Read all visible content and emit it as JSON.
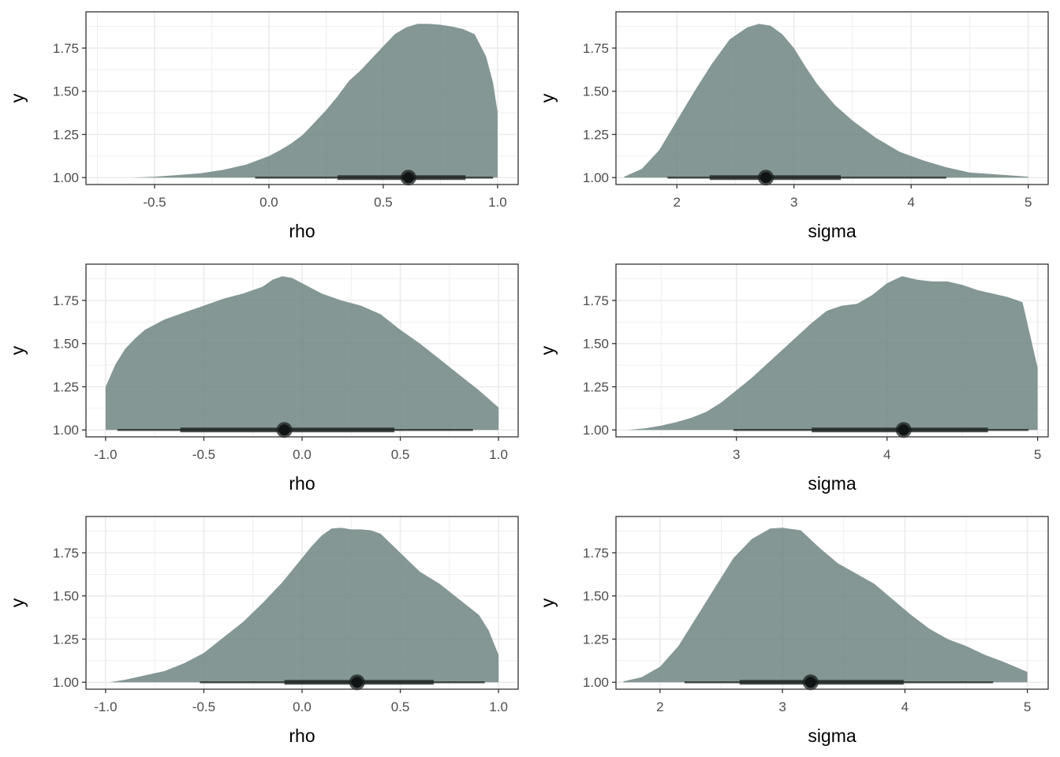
{
  "chart_data": [
    {
      "type": "area",
      "xlabel": "rho",
      "ylabel": "y",
      "xlim": [
        -0.8,
        1.09
      ],
      "ylim": [
        0.96,
        1.96
      ],
      "x_ticks": [
        -0.5,
        0.0,
        0.5,
        1.0
      ],
      "x_tick_labels": [
        "-0.5",
        "0.0",
        "0.5",
        "1.0"
      ],
      "y_ticks": [
        1.0,
        1.25,
        1.5,
        1.75
      ],
      "y_tick_labels": [
        "1.00",
        "1.25",
        "1.50",
        "1.75"
      ],
      "grid": true,
      "fill_color": "#6f8583",
      "density": {
        "x": [
          -0.72,
          -0.6,
          -0.5,
          -0.4,
          -0.3,
          -0.2,
          -0.1,
          0.0,
          0.05,
          0.1,
          0.15,
          0.2,
          0.25,
          0.3,
          0.35,
          0.4,
          0.45,
          0.5,
          0.55,
          0.6,
          0.65,
          0.7,
          0.75,
          0.8,
          0.85,
          0.9,
          0.95,
          0.98,
          1.0
        ],
        "y": [
          1.0,
          1.0,
          1.005,
          1.015,
          1.025,
          1.045,
          1.075,
          1.125,
          1.16,
          1.2,
          1.25,
          1.32,
          1.39,
          1.47,
          1.56,
          1.62,
          1.69,
          1.76,
          1.83,
          1.87,
          1.89,
          1.89,
          1.885,
          1.875,
          1.86,
          1.83,
          1.7,
          1.55,
          1.38
        ]
      },
      "point_estimate": 0.61,
      "interval_inner": [
        0.3,
        0.86
      ],
      "interval_outer": [
        -0.06,
        0.98
      ]
    },
    {
      "type": "area",
      "xlabel": "sigma",
      "ylabel": "y",
      "xlim": [
        1.48,
        5.17
      ],
      "ylim": [
        0.96,
        1.96
      ],
      "x_ticks": [
        2,
        3,
        4,
        5
      ],
      "x_tick_labels": [
        "2",
        "3",
        "4",
        "5"
      ],
      "y_ticks": [
        1.0,
        1.25,
        1.5,
        1.75
      ],
      "y_tick_labels": [
        "1.00",
        "1.25",
        "1.50",
        "1.75"
      ],
      "grid": true,
      "fill_color": "#6f8583",
      "density": {
        "x": [
          1.55,
          1.7,
          1.85,
          2.0,
          2.15,
          2.3,
          2.45,
          2.6,
          2.7,
          2.8,
          2.9,
          3.0,
          3.1,
          3.2,
          3.35,
          3.5,
          3.7,
          3.9,
          4.1,
          4.3,
          4.5,
          4.7,
          5.0
        ],
        "y": [
          1.005,
          1.05,
          1.16,
          1.33,
          1.5,
          1.66,
          1.8,
          1.87,
          1.89,
          1.88,
          1.83,
          1.75,
          1.64,
          1.54,
          1.42,
          1.33,
          1.23,
          1.15,
          1.1,
          1.06,
          1.03,
          1.02,
          1.005
        ]
      },
      "point_estimate": 2.76,
      "interval_inner": [
        2.28,
        3.4
      ],
      "interval_outer": [
        1.92,
        4.3
      ]
    },
    {
      "type": "area",
      "xlabel": "rho",
      "ylabel": "y",
      "xlim": [
        -1.1,
        1.1
      ],
      "ylim": [
        0.96,
        1.96
      ],
      "x_ticks": [
        -1.0,
        -0.5,
        0.0,
        0.5,
        1.0
      ],
      "x_tick_labels": [
        "-1.0",
        "-0.5",
        "0.0",
        "0.5",
        "1.0"
      ],
      "y_ticks": [
        1.0,
        1.25,
        1.5,
        1.75
      ],
      "y_tick_labels": [
        "1.00",
        "1.25",
        "1.50",
        "1.75"
      ],
      "grid": true,
      "fill_color": "#6f8583",
      "density": {
        "x": [
          -1.0,
          -0.95,
          -0.9,
          -0.85,
          -0.8,
          -0.7,
          -0.6,
          -0.5,
          -0.4,
          -0.3,
          -0.2,
          -0.15,
          -0.1,
          -0.05,
          0.0,
          0.1,
          0.2,
          0.3,
          0.4,
          0.5,
          0.6,
          0.7,
          0.8,
          0.9,
          0.95,
          1.0
        ],
        "y": [
          1.25,
          1.38,
          1.47,
          1.53,
          1.58,
          1.64,
          1.68,
          1.72,
          1.76,
          1.79,
          1.83,
          1.87,
          1.89,
          1.88,
          1.85,
          1.79,
          1.75,
          1.72,
          1.67,
          1.58,
          1.5,
          1.41,
          1.32,
          1.23,
          1.18,
          1.13
        ]
      },
      "point_estimate": -0.09,
      "interval_inner": [
        -0.62,
        0.47
      ],
      "interval_outer": [
        -0.94,
        0.87
      ]
    },
    {
      "type": "area",
      "xlabel": "sigma",
      "ylabel": "y",
      "xlim": [
        2.2,
        5.07
      ],
      "ylim": [
        0.96,
        1.96
      ],
      "x_ticks": [
        3,
        4,
        5
      ],
      "x_tick_labels": [
        "3",
        "4",
        "5"
      ],
      "y_ticks": [
        1.0,
        1.25,
        1.5,
        1.75
      ],
      "y_tick_labels": [
        "1.00",
        "1.25",
        "1.50",
        "1.75"
      ],
      "grid": true,
      "fill_color": "#6f8583",
      "density": {
        "x": [
          2.28,
          2.4,
          2.5,
          2.6,
          2.7,
          2.8,
          2.9,
          3.0,
          3.1,
          3.2,
          3.3,
          3.4,
          3.5,
          3.6,
          3.7,
          3.8,
          3.9,
          4.0,
          4.1,
          4.2,
          4.3,
          4.4,
          4.5,
          4.6,
          4.7,
          4.8,
          4.9,
          5.0
        ],
        "y": [
          1.0,
          1.01,
          1.025,
          1.045,
          1.07,
          1.105,
          1.16,
          1.23,
          1.3,
          1.38,
          1.46,
          1.54,
          1.62,
          1.69,
          1.72,
          1.73,
          1.78,
          1.85,
          1.89,
          1.87,
          1.86,
          1.86,
          1.84,
          1.81,
          1.79,
          1.77,
          1.74,
          1.36
        ]
      },
      "point_estimate": 4.11,
      "interval_inner": [
        3.5,
        4.67
      ],
      "interval_outer": [
        2.98,
        4.94
      ]
    },
    {
      "type": "area",
      "xlabel": "rho",
      "ylabel": "y",
      "xlim": [
        -1.1,
        1.1
      ],
      "ylim": [
        0.96,
        1.96
      ],
      "x_ticks": [
        -1.0,
        -0.5,
        0.0,
        0.5,
        1.0
      ],
      "x_tick_labels": [
        "-1.0",
        "-0.5",
        "0.0",
        "0.5",
        "1.0"
      ],
      "y_ticks": [
        1.0,
        1.25,
        1.5,
        1.75
      ],
      "y_tick_labels": [
        "1.00",
        "1.25",
        "1.50",
        "1.75"
      ],
      "grid": true,
      "fill_color": "#6f8583",
      "density": {
        "x": [
          -0.98,
          -0.9,
          -0.8,
          -0.7,
          -0.6,
          -0.5,
          -0.4,
          -0.3,
          -0.2,
          -0.1,
          0.0,
          0.05,
          0.1,
          0.15,
          0.2,
          0.25,
          0.3,
          0.35,
          0.4,
          0.5,
          0.6,
          0.7,
          0.8,
          0.9,
          0.95,
          1.0
        ],
        "y": [
          1.0,
          1.015,
          1.04,
          1.065,
          1.11,
          1.17,
          1.26,
          1.35,
          1.46,
          1.58,
          1.72,
          1.79,
          1.85,
          1.89,
          1.895,
          1.885,
          1.885,
          1.88,
          1.86,
          1.75,
          1.64,
          1.57,
          1.48,
          1.39,
          1.3,
          1.16
        ]
      },
      "point_estimate": 0.28,
      "interval_inner": [
        -0.09,
        0.67
      ],
      "interval_outer": [
        -0.52,
        0.93
      ]
    },
    {
      "type": "area",
      "xlabel": "sigma",
      "ylabel": "y",
      "xlim": [
        1.64,
        5.17
      ],
      "ylim": [
        0.96,
        1.96
      ],
      "x_ticks": [
        2,
        3,
        4,
        5
      ],
      "x_tick_labels": [
        "2",
        "3",
        "4",
        "5"
      ],
      "y_ticks": [
        1.0,
        1.25,
        1.5,
        1.75
      ],
      "y_tick_labels": [
        "1.00",
        "1.25",
        "1.50",
        "1.75"
      ],
      "grid": true,
      "fill_color": "#6f8583",
      "density": {
        "x": [
          1.7,
          1.85,
          2.0,
          2.15,
          2.3,
          2.45,
          2.6,
          2.75,
          2.9,
          3.0,
          3.15,
          3.3,
          3.45,
          3.6,
          3.75,
          3.9,
          4.05,
          4.2,
          4.35,
          4.5,
          4.65,
          4.8,
          4.9,
          5.0
        ],
        "y": [
          1.005,
          1.03,
          1.09,
          1.21,
          1.38,
          1.55,
          1.72,
          1.83,
          1.89,
          1.895,
          1.88,
          1.78,
          1.69,
          1.63,
          1.57,
          1.48,
          1.39,
          1.31,
          1.25,
          1.21,
          1.16,
          1.12,
          1.09,
          1.06
        ]
      },
      "point_estimate": 3.23,
      "interval_inner": [
        2.65,
        3.99
      ],
      "interval_outer": [
        2.2,
        4.72
      ]
    }
  ]
}
